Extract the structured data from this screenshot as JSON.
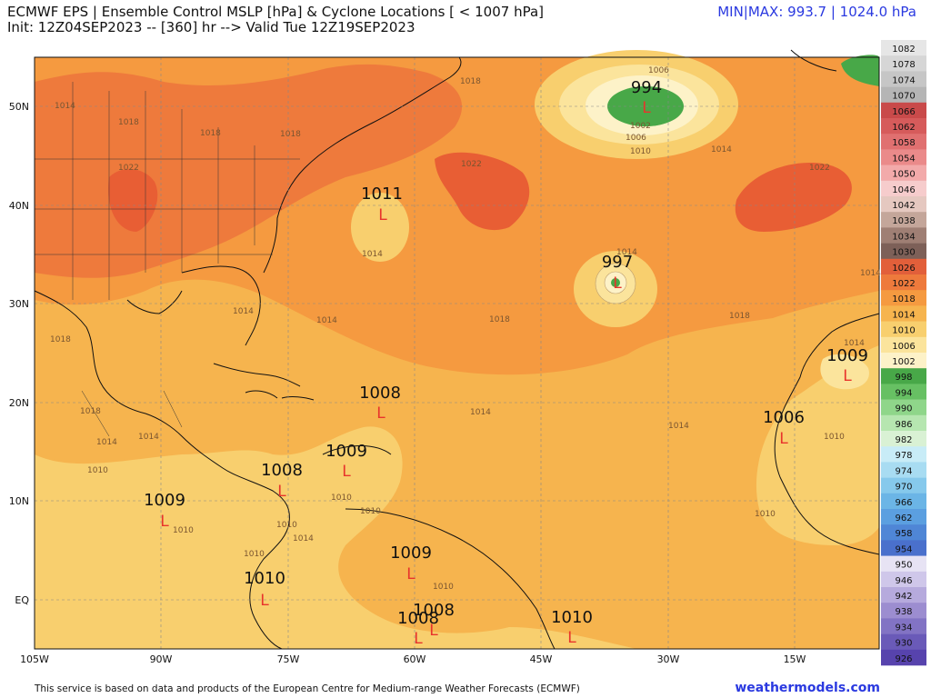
{
  "header": {
    "title": "ECMWF EPS | Ensemble Control MSLP [hPa] & Cyclone Locations [ < 1007 hPa]",
    "init": "Init: 12Z04SEP2023 -- [360] hr --> Valid Tue 12Z19SEP2023",
    "minmax": "MIN|MAX: 993.7 | 1024.0 hPa"
  },
  "footer": {
    "credit": "This service is based on data and products of the European Centre for Medium-range Weather Forecasts (ECMWF)",
    "brand": "weathermodels.com"
  },
  "map": {
    "lat_labels": [
      "50N",
      "40N",
      "30N",
      "20N",
      "10N",
      "EQ"
    ],
    "lon_labels": [
      "105W",
      "90W",
      "75W",
      "60W",
      "45W",
      "30W",
      "15W"
    ],
    "lows": [
      {
        "value": "994",
        "symbol": "L"
      },
      {
        "value": "997",
        "symbol": "L"
      },
      {
        "value": "1011",
        "symbol": "L"
      },
      {
        "value": "1008",
        "symbol": "L"
      },
      {
        "value": "1009",
        "symbol": "L"
      },
      {
        "value": "1008",
        "symbol": "L"
      },
      {
        "value": "1009",
        "symbol": "L"
      },
      {
        "value": "1009",
        "symbol": "L"
      },
      {
        "value": "1010",
        "symbol": "L"
      },
      {
        "value": "1008",
        "symbol": "L"
      },
      {
        "value": "1008",
        "symbol": "L"
      },
      {
        "value": "1010",
        "symbol": "L"
      },
      {
        "value": "1006",
        "symbol": "L"
      },
      {
        "value": "1009",
        "symbol": "L"
      }
    ],
    "isobar_labels": [
      "1014",
      "1018",
      "1018",
      "1018",
      "1022",
      "1014",
      "1006",
      "1002",
      "1006",
      "1010",
      "1014",
      "1022",
      "1018",
      "1014",
      "1014",
      "1014",
      "1014",
      "1018",
      "1018",
      "1018",
      "1014",
      "1014",
      "1014",
      "1014",
      "1010",
      "1010",
      "1010",
      "1010",
      "1010",
      "1010",
      "1010",
      "1010",
      "1010",
      "1014",
      "1014",
      "1022",
      "1018"
    ]
  },
  "colorbar": {
    "levels": [
      "1082",
      "1078",
      "1074",
      "1070",
      "1066",
      "1062",
      "1058",
      "1054",
      "1050",
      "1046",
      "1042",
      "1038",
      "1034",
      "1030",
      "1026",
      "1022",
      "1018",
      "1014",
      "1010",
      "1006",
      "1002",
      "998",
      "994",
      "990",
      "986",
      "982",
      "978",
      "974",
      "970",
      "966",
      "962",
      "958",
      "954",
      "950",
      "946",
      "942",
      "938",
      "934",
      "930",
      "926"
    ],
    "colors": [
      "#e6e6e6",
      "#d6d6d6",
      "#c6c6c6",
      "#b5b5b5",
      "#c94a4a",
      "#d65b5b",
      "#e07070",
      "#ea8a8a",
      "#f2aaaa",
      "#f6cccc",
      "#e5c8c0",
      "#c4a69a",
      "#9f7f74",
      "#7d6058",
      "#e25f3a",
      "#ee7a3c",
      "#f59a40",
      "#f6b44e",
      "#f8cf6e",
      "#fbe49c",
      "#fdf2c8",
      "#48a848",
      "#67c063",
      "#8fd68a",
      "#b6e6b0",
      "#d9f1d4",
      "#c8ecf7",
      "#a8dcf2",
      "#86c9ec",
      "#6bb5e6",
      "#5b9fe0",
      "#4f86d6",
      "#4a70cc",
      "#e7e3f4",
      "#cfc7ea",
      "#b6aadd",
      "#9c8dd0",
      "#8273c4",
      "#6a5ab8",
      "#5743ad"
    ]
  }
}
